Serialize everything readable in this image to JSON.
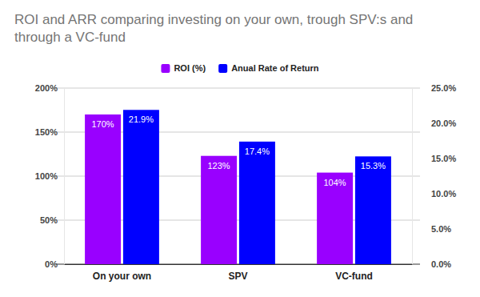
{
  "chart_data": {
    "type": "bar",
    "title": "ROI and ARR comparing investing on your own, trough SPV:s and through a VC-fund",
    "categories": [
      "On your own",
      "SPV",
      "VC-fund"
    ],
    "series": [
      {
        "name": "ROI (%)",
        "color": "#9900ff",
        "values": [
          170,
          123,
          104
        ],
        "value_labels": [
          "170%",
          "123%",
          "104%"
        ]
      },
      {
        "name": "Anual Rate of Return",
        "color": "#0000ff",
        "values": [
          21.9,
          17.4,
          15.3
        ],
        "value_labels": [
          "21.9%",
          "17.4%",
          "15.3%"
        ],
        "axis": "y2"
      }
    ],
    "ylim": [
      0,
      200
    ],
    "yticks": [
      {
        "value": 0,
        "label": "0%"
      },
      {
        "value": 50,
        "label": "50%"
      },
      {
        "value": 100,
        "label": "100%"
      },
      {
        "value": 150,
        "label": "150%"
      },
      {
        "value": 200,
        "label": "200%"
      }
    ],
    "y2lim": [
      0,
      25
    ],
    "y2ticks": [
      {
        "value": 0,
        "label": "0.0%"
      },
      {
        "value": 5,
        "label": "5.0%"
      },
      {
        "value": 10,
        "label": "10.0%"
      },
      {
        "value": 15,
        "label": "15.0%"
      },
      {
        "value": 20,
        "label": "20.0%"
      },
      {
        "value": 25,
        "label": "25.0%"
      }
    ],
    "grid": true,
    "legend": "top",
    "data_labels": true
  }
}
